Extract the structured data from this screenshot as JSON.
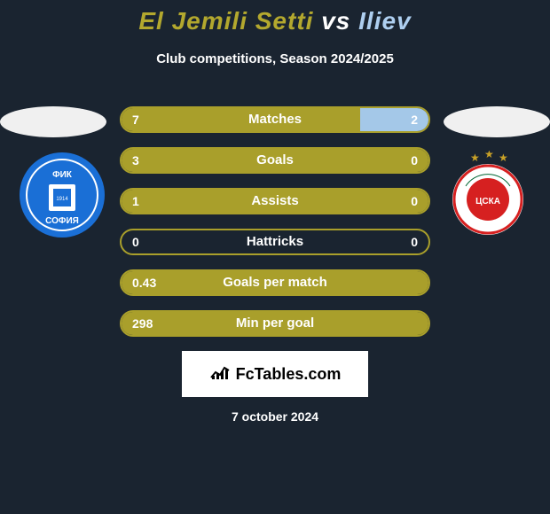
{
  "title": {
    "player1": "El Jemili Setti",
    "vs": "vs",
    "player2": "Iliev",
    "color_player1": "#b3a82e",
    "color_vs": "#ffffff",
    "color_player2": "#aecff0"
  },
  "subtitle": "Club competitions, Season 2024/2025",
  "left_logo": {
    "bg_color": "#1a6fd6",
    "inner_color": "#ffffff",
    "text": "ФИК",
    "text2": "СОФИЯ"
  },
  "right_logo": {
    "bg_color": "#ffffff",
    "ring_color": "#d62020",
    "center_color": "#d62020",
    "stars_color": "#c9a227"
  },
  "stats": [
    {
      "label": "Matches",
      "left_value": "7",
      "right_value": "2",
      "left_pct": 77.8,
      "right_pct": 22.2,
      "left_color": "#a99f2b",
      "right_color": "#a4c8e8",
      "border_color": "#a99f2b"
    },
    {
      "label": "Goals",
      "left_value": "3",
      "right_value": "0",
      "left_pct": 100,
      "right_pct": 0,
      "left_color": "#a99f2b",
      "right_color": "#a4c8e8",
      "border_color": "#a99f2b"
    },
    {
      "label": "Assists",
      "left_value": "1",
      "right_value": "0",
      "left_pct": 100,
      "right_pct": 0,
      "left_color": "#a99f2b",
      "right_color": "#a4c8e8",
      "border_color": "#a99f2b"
    },
    {
      "label": "Hattricks",
      "left_value": "0",
      "right_value": "0",
      "left_pct": 0,
      "right_pct": 0,
      "left_color": "#a99f2b",
      "right_color": "#a4c8e8",
      "border_color": "#a99f2b"
    },
    {
      "label": "Goals per match",
      "left_value": "0.43",
      "right_value": "",
      "left_pct": 100,
      "right_pct": 0,
      "left_color": "#a99f2b",
      "right_color": "#a4c8e8",
      "border_color": "#a99f2b"
    },
    {
      "label": "Min per goal",
      "left_value": "298",
      "right_value": "",
      "left_pct": 100,
      "right_pct": 0,
      "left_color": "#a99f2b",
      "right_color": "#a4c8e8",
      "border_color": "#a99f2b"
    }
  ],
  "branding": "FcTables.com",
  "date": "7 october 2024",
  "background_color": "#1a2430"
}
